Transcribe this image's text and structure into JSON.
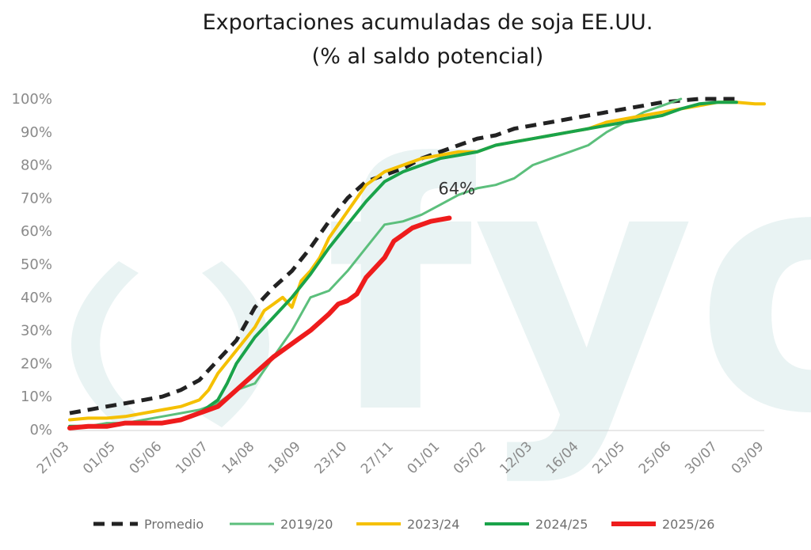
{
  "chart_data": {
    "type": "line",
    "title_line1": "Exportaciones acumuladas de soja EE.UU.",
    "title_line2": "(% al saldo potencial)",
    "watermark": "fyo",
    "ylim": [
      0,
      100
    ],
    "y_ticks": [
      0,
      10,
      20,
      30,
      40,
      50,
      60,
      70,
      80,
      90,
      100
    ],
    "y_tick_labels": [
      "0%",
      "10%",
      "20%",
      "30%",
      "40%",
      "50%",
      "60%",
      "70%",
      "80%",
      "90%",
      "100%"
    ],
    "x_range": [
      0,
      159
    ],
    "x_ticks": [
      0,
      15,
      29,
      44,
      58,
      72,
      87,
      101,
      116,
      130,
      145,
      159
    ],
    "x_tick_labels": [
      "27/03",
      "01/05",
      "05/06",
      "10/07",
      "14/08",
      "18/09",
      "23/10",
      "27/11",
      "01/01",
      "05/02",
      "12/03",
      "16/04",
      "21/05",
      "25/06",
      "30/07",
      "03/09"
    ],
    "x_tick_positions": [
      0,
      5,
      10,
      15,
      20,
      25,
      30,
      35,
      40,
      45,
      50,
      55,
      60,
      65,
      70,
      75
    ],
    "x_max": 75,
    "annotation": {
      "text": "64%",
      "x": 41,
      "y": 64
    },
    "series": [
      {
        "name": "Promedio",
        "color": "#222222",
        "dashed": true,
        "width": 5,
        "x": [
          0,
          2,
          4,
          6,
          8,
          10,
          12,
          14,
          16,
          18,
          20,
          22,
          24,
          26,
          28,
          30,
          32,
          34,
          36,
          38,
          40,
          42,
          44,
          46,
          48,
          50,
          52,
          54,
          56,
          58,
          60,
          62,
          64,
          66,
          68,
          70,
          72
        ],
        "y": [
          5,
          6,
          7,
          8,
          9,
          10,
          12,
          15,
          21,
          27,
          37,
          43,
          48,
          55,
          63,
          70,
          75,
          77,
          79,
          82,
          84,
          86,
          88,
          89,
          91,
          92,
          93,
          94,
          95,
          96,
          97,
          98,
          99,
          99.5,
          100,
          100,
          100
        ]
      },
      {
        "name": "2019/20",
        "color": "#5cbf7c",
        "dashed": false,
        "width": 3,
        "x": [
          0,
          2,
          4,
          6,
          8,
          10,
          12,
          14,
          16,
          17,
          18,
          20,
          22,
          24,
          26,
          28,
          30,
          32,
          34,
          36,
          38,
          40,
          42,
          44,
          46,
          48,
          50,
          52,
          54,
          56,
          58,
          60,
          62,
          64,
          66
        ],
        "y": [
          1,
          1,
          2,
          2,
          3,
          4,
          5,
          6,
          8,
          10,
          12,
          14,
          22,
          30,
          40,
          42,
          48,
          55,
          62,
          63,
          65,
          68,
          71,
          73,
          74,
          76,
          80,
          82,
          84,
          86,
          90,
          93,
          96,
          98,
          100
        ]
      },
      {
        "name": "2023/24",
        "color": "#f5c000",
        "dashed": false,
        "width": 4,
        "x": [
          0,
          2,
          4,
          6,
          8,
          10,
          12,
          14,
          15,
          16,
          18,
          20,
          21,
          22,
          23,
          24,
          25,
          26,
          27,
          28,
          30,
          32,
          34,
          36,
          38,
          40,
          42,
          44,
          46,
          48,
          50,
          52,
          54,
          56,
          58,
          60,
          62,
          64,
          66,
          68,
          70,
          72,
          74,
          75
        ],
        "y": [
          3,
          3.5,
          3.5,
          4,
          5,
          6,
          7,
          9,
          12,
          17,
          24,
          31,
          36,
          38,
          40,
          37,
          45,
          48,
          52,
          58,
          66,
          74,
          78,
          80,
          82,
          83,
          84,
          84,
          86,
          87,
          88,
          89,
          90,
          91,
          93,
          94,
          95,
          96,
          97,
          98,
          99,
          99,
          98.5,
          98.5
        ]
      },
      {
        "name": "2024/25",
        "color": "#1aa34a",
        "dashed": false,
        "width": 4,
        "x": [
          0,
          2,
          4,
          6,
          8,
          10,
          12,
          14,
          16,
          17,
          18,
          20,
          22,
          24,
          26,
          28,
          30,
          32,
          34,
          36,
          38,
          40,
          42,
          44,
          46,
          48,
          50,
          52,
          54,
          56,
          58,
          60,
          62,
          64,
          66,
          68,
          70,
          72
        ],
        "y": [
          1,
          1,
          1,
          2,
          2,
          2,
          3,
          5,
          9,
          14,
          20,
          28,
          34,
          40,
          47,
          55,
          62,
          69,
          75,
          78,
          80,
          82,
          83,
          84,
          86,
          87,
          88,
          89,
          90,
          91,
          92,
          93,
          94,
          95,
          97,
          98.5,
          99,
          99
        ]
      },
      {
        "name": "2025/26",
        "color": "#ee1c1c",
        "dashed": false,
        "width": 6,
        "x": [
          0,
          2,
          4,
          6,
          8,
          10,
          12,
          14,
          16,
          18,
          20,
          22,
          24,
          26,
          28,
          29,
          30,
          31,
          32,
          33,
          34,
          35,
          36,
          37,
          38,
          39,
          40,
          41
        ],
        "y": [
          0.5,
          1,
          1,
          2,
          2,
          2,
          3,
          5,
          7,
          12,
          17,
          22,
          26,
          30,
          35,
          38,
          39,
          41,
          46,
          49,
          52,
          57,
          59,
          61,
          62,
          63,
          63.5,
          64
        ]
      }
    ]
  }
}
